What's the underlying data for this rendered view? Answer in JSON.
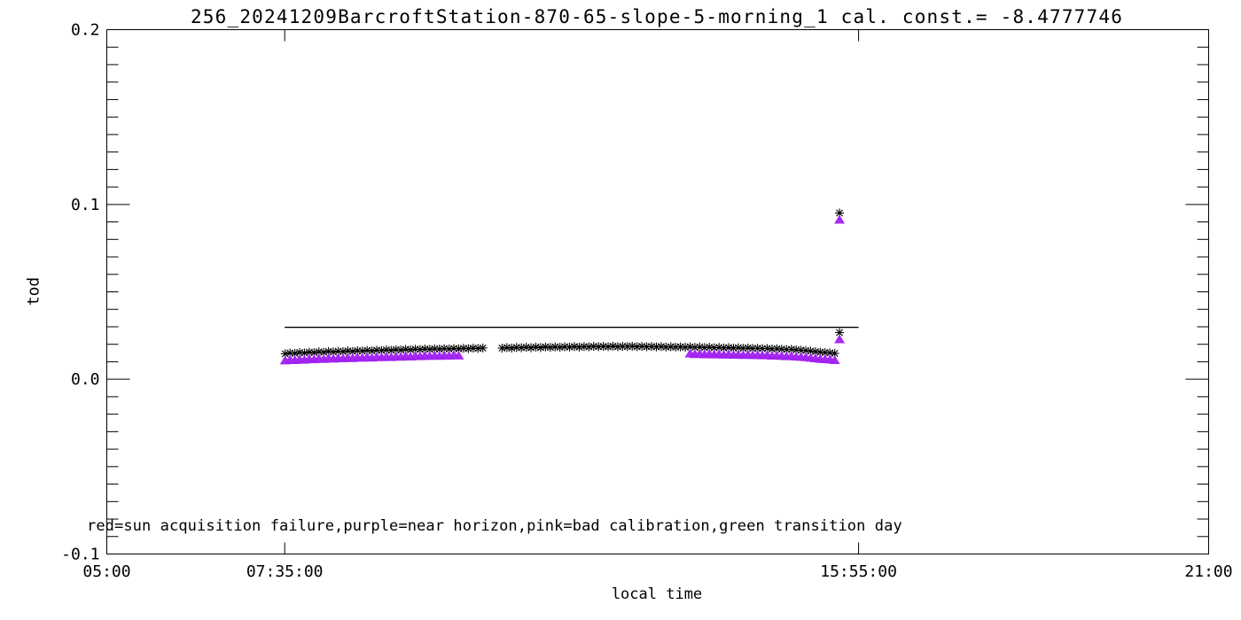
{
  "window": {
    "background": "#ffffff"
  },
  "colors": {
    "axis": "#000000",
    "marker": "#000000",
    "near_horizon": "#a020f0",
    "reference_line": "#000000"
  },
  "chart_data": {
    "type": "scatter",
    "title": "256_20241209BarcroftStation-870-65-slope-5-morning_1 cal. const.= -8.4777746",
    "xlabel": "local time",
    "ylabel": "tod",
    "annotation": "red=sun acquisition failure,purple=near horizon,pink=bad calibration,green transition day",
    "grid": "off",
    "xlim_hours": [
      5,
      21
    ],
    "ylim": [
      -0.1,
      0.2
    ],
    "x_major_ticks": [
      {
        "t": 5.0,
        "label": "05:00"
      },
      {
        "t": 7.5833,
        "label": "07:35:00"
      },
      {
        "t": 15.9167,
        "label": "15:55:00"
      },
      {
        "t": 21.0,
        "label": "21:00"
      }
    ],
    "y_major_ticks": [
      {
        "v": 0.2,
        "label": "0.2"
      },
      {
        "v": 0.1,
        "label": "0.1"
      },
      {
        "v": 0.0,
        "label": "0.0"
      },
      {
        "v": -0.1,
        "label": "-0.1"
      }
    ],
    "y_minor_step": 0.01,
    "reference_line": {
      "tod": 0.0297,
      "t_start": 7.5833,
      "t_end": 15.9167
    },
    "flag_meaning": {
      "0": "normal",
      "1": "near horizon (purple triangle)"
    },
    "points": [
      [
        7.59,
        0.0146,
        1
      ],
      [
        7.66,
        0.015,
        1
      ],
      [
        7.73,
        0.0148,
        1
      ],
      [
        7.8,
        0.0153,
        1
      ],
      [
        7.87,
        0.015,
        1
      ],
      [
        7.94,
        0.0155,
        1
      ],
      [
        8.01,
        0.0152,
        1
      ],
      [
        8.08,
        0.0157,
        1
      ],
      [
        8.15,
        0.0154,
        1
      ],
      [
        8.22,
        0.0159,
        1
      ],
      [
        8.29,
        0.0156,
        1
      ],
      [
        8.36,
        0.016,
        1
      ],
      [
        8.43,
        0.0158,
        1
      ],
      [
        8.5,
        0.0162,
        1
      ],
      [
        8.57,
        0.0159,
        1
      ],
      [
        8.64,
        0.0163,
        1
      ],
      [
        8.71,
        0.0161,
        1
      ],
      [
        8.78,
        0.0165,
        1
      ],
      [
        8.85,
        0.0162,
        1
      ],
      [
        8.92,
        0.0166,
        1
      ],
      [
        8.99,
        0.0164,
        1
      ],
      [
        9.06,
        0.0168,
        1
      ],
      [
        9.13,
        0.0165,
        1
      ],
      [
        9.2,
        0.0169,
        1
      ],
      [
        9.27,
        0.0167,
        1
      ],
      [
        9.34,
        0.0171,
        1
      ],
      [
        9.41,
        0.0168,
        1
      ],
      [
        9.48,
        0.0172,
        1
      ],
      [
        9.55,
        0.017,
        1
      ],
      [
        9.62,
        0.0173,
        1
      ],
      [
        9.69,
        0.0171,
        1
      ],
      [
        9.76,
        0.0174,
        1
      ],
      [
        9.83,
        0.0172,
        1
      ],
      [
        9.9,
        0.0175,
        1
      ],
      [
        9.97,
        0.0173,
        1
      ],
      [
        10.04,
        0.0176,
        1
      ],
      [
        10.11,
        0.0174,
        1
      ],
      [
        10.18,
        0.0177,
        0
      ],
      [
        10.25,
        0.0175,
        0
      ],
      [
        10.32,
        0.0178,
        0
      ],
      [
        10.39,
        0.0176,
        0
      ],
      [
        10.46,
        0.0179,
        0
      ],
      [
        10.74,
        0.0178,
        0
      ],
      [
        10.81,
        0.0181,
        0
      ],
      [
        10.88,
        0.0178,
        0
      ],
      [
        10.95,
        0.0182,
        0
      ],
      [
        11.02,
        0.018,
        0
      ],
      [
        11.09,
        0.0183,
        0
      ],
      [
        11.16,
        0.018,
        0
      ],
      [
        11.23,
        0.0184,
        0
      ],
      [
        11.3,
        0.0181,
        0
      ],
      [
        11.37,
        0.0185,
        0
      ],
      [
        11.44,
        0.0182,
        0
      ],
      [
        11.51,
        0.0185,
        0
      ],
      [
        11.58,
        0.0183,
        0
      ],
      [
        11.65,
        0.0186,
        0
      ],
      [
        11.72,
        0.0184,
        0
      ],
      [
        11.79,
        0.0187,
        0
      ],
      [
        11.86,
        0.0184,
        0
      ],
      [
        11.93,
        0.0187,
        0
      ],
      [
        12.0,
        0.0185,
        0
      ],
      [
        12.07,
        0.0188,
        0
      ],
      [
        12.14,
        0.0186,
        0
      ],
      [
        12.21,
        0.0188,
        0
      ],
      [
        12.28,
        0.0186,
        0
      ],
      [
        12.35,
        0.0189,
        0
      ],
      [
        12.42,
        0.0186,
        0
      ],
      [
        12.49,
        0.0188,
        0
      ],
      [
        12.56,
        0.0187,
        0
      ],
      [
        12.63,
        0.0189,
        0
      ],
      [
        12.7,
        0.0186,
        0
      ],
      [
        12.77,
        0.0188,
        0
      ],
      [
        12.84,
        0.0186,
        0
      ],
      [
        12.91,
        0.0187,
        0
      ],
      [
        12.98,
        0.0185,
        0
      ],
      [
        13.05,
        0.0187,
        0
      ],
      [
        13.12,
        0.0184,
        0
      ],
      [
        13.19,
        0.0186,
        0
      ],
      [
        13.26,
        0.0184,
        0
      ],
      [
        13.33,
        0.0185,
        0
      ],
      [
        13.4,
        0.0183,
        0
      ],
      [
        13.47,
        0.0185,
        1
      ],
      [
        13.54,
        0.0182,
        1
      ],
      [
        13.61,
        0.0184,
        1
      ],
      [
        13.68,
        0.0181,
        1
      ],
      [
        13.75,
        0.0183,
        1
      ],
      [
        13.82,
        0.018,
        1
      ],
      [
        13.89,
        0.0182,
        1
      ],
      [
        13.96,
        0.0179,
        1
      ],
      [
        14.03,
        0.0181,
        1
      ],
      [
        14.1,
        0.0178,
        1
      ],
      [
        14.17,
        0.018,
        1
      ],
      [
        14.24,
        0.0177,
        1
      ],
      [
        14.31,
        0.0179,
        1
      ],
      [
        14.38,
        0.0176,
        1
      ],
      [
        14.45,
        0.0177,
        1
      ],
      [
        14.52,
        0.0175,
        1
      ],
      [
        14.59,
        0.0176,
        1
      ],
      [
        14.66,
        0.0173,
        1
      ],
      [
        14.73,
        0.0174,
        1
      ],
      [
        14.8,
        0.0172,
        1
      ],
      [
        14.87,
        0.017,
        1
      ],
      [
        14.94,
        0.0171,
        1
      ],
      [
        15.01,
        0.0168,
        1
      ],
      [
        15.08,
        0.0166,
        1
      ],
      [
        15.15,
        0.0164,
        1
      ],
      [
        15.22,
        0.0161,
        1
      ],
      [
        15.29,
        0.0158,
        1
      ],
      [
        15.36,
        0.0155,
        1
      ],
      [
        15.43,
        0.0153,
        1
      ],
      [
        15.5,
        0.0151,
        1
      ],
      [
        15.57,
        0.0148,
        1
      ],
      [
        15.64,
        0.0951,
        1
      ],
      [
        15.64,
        0.0267,
        1
      ]
    ]
  }
}
